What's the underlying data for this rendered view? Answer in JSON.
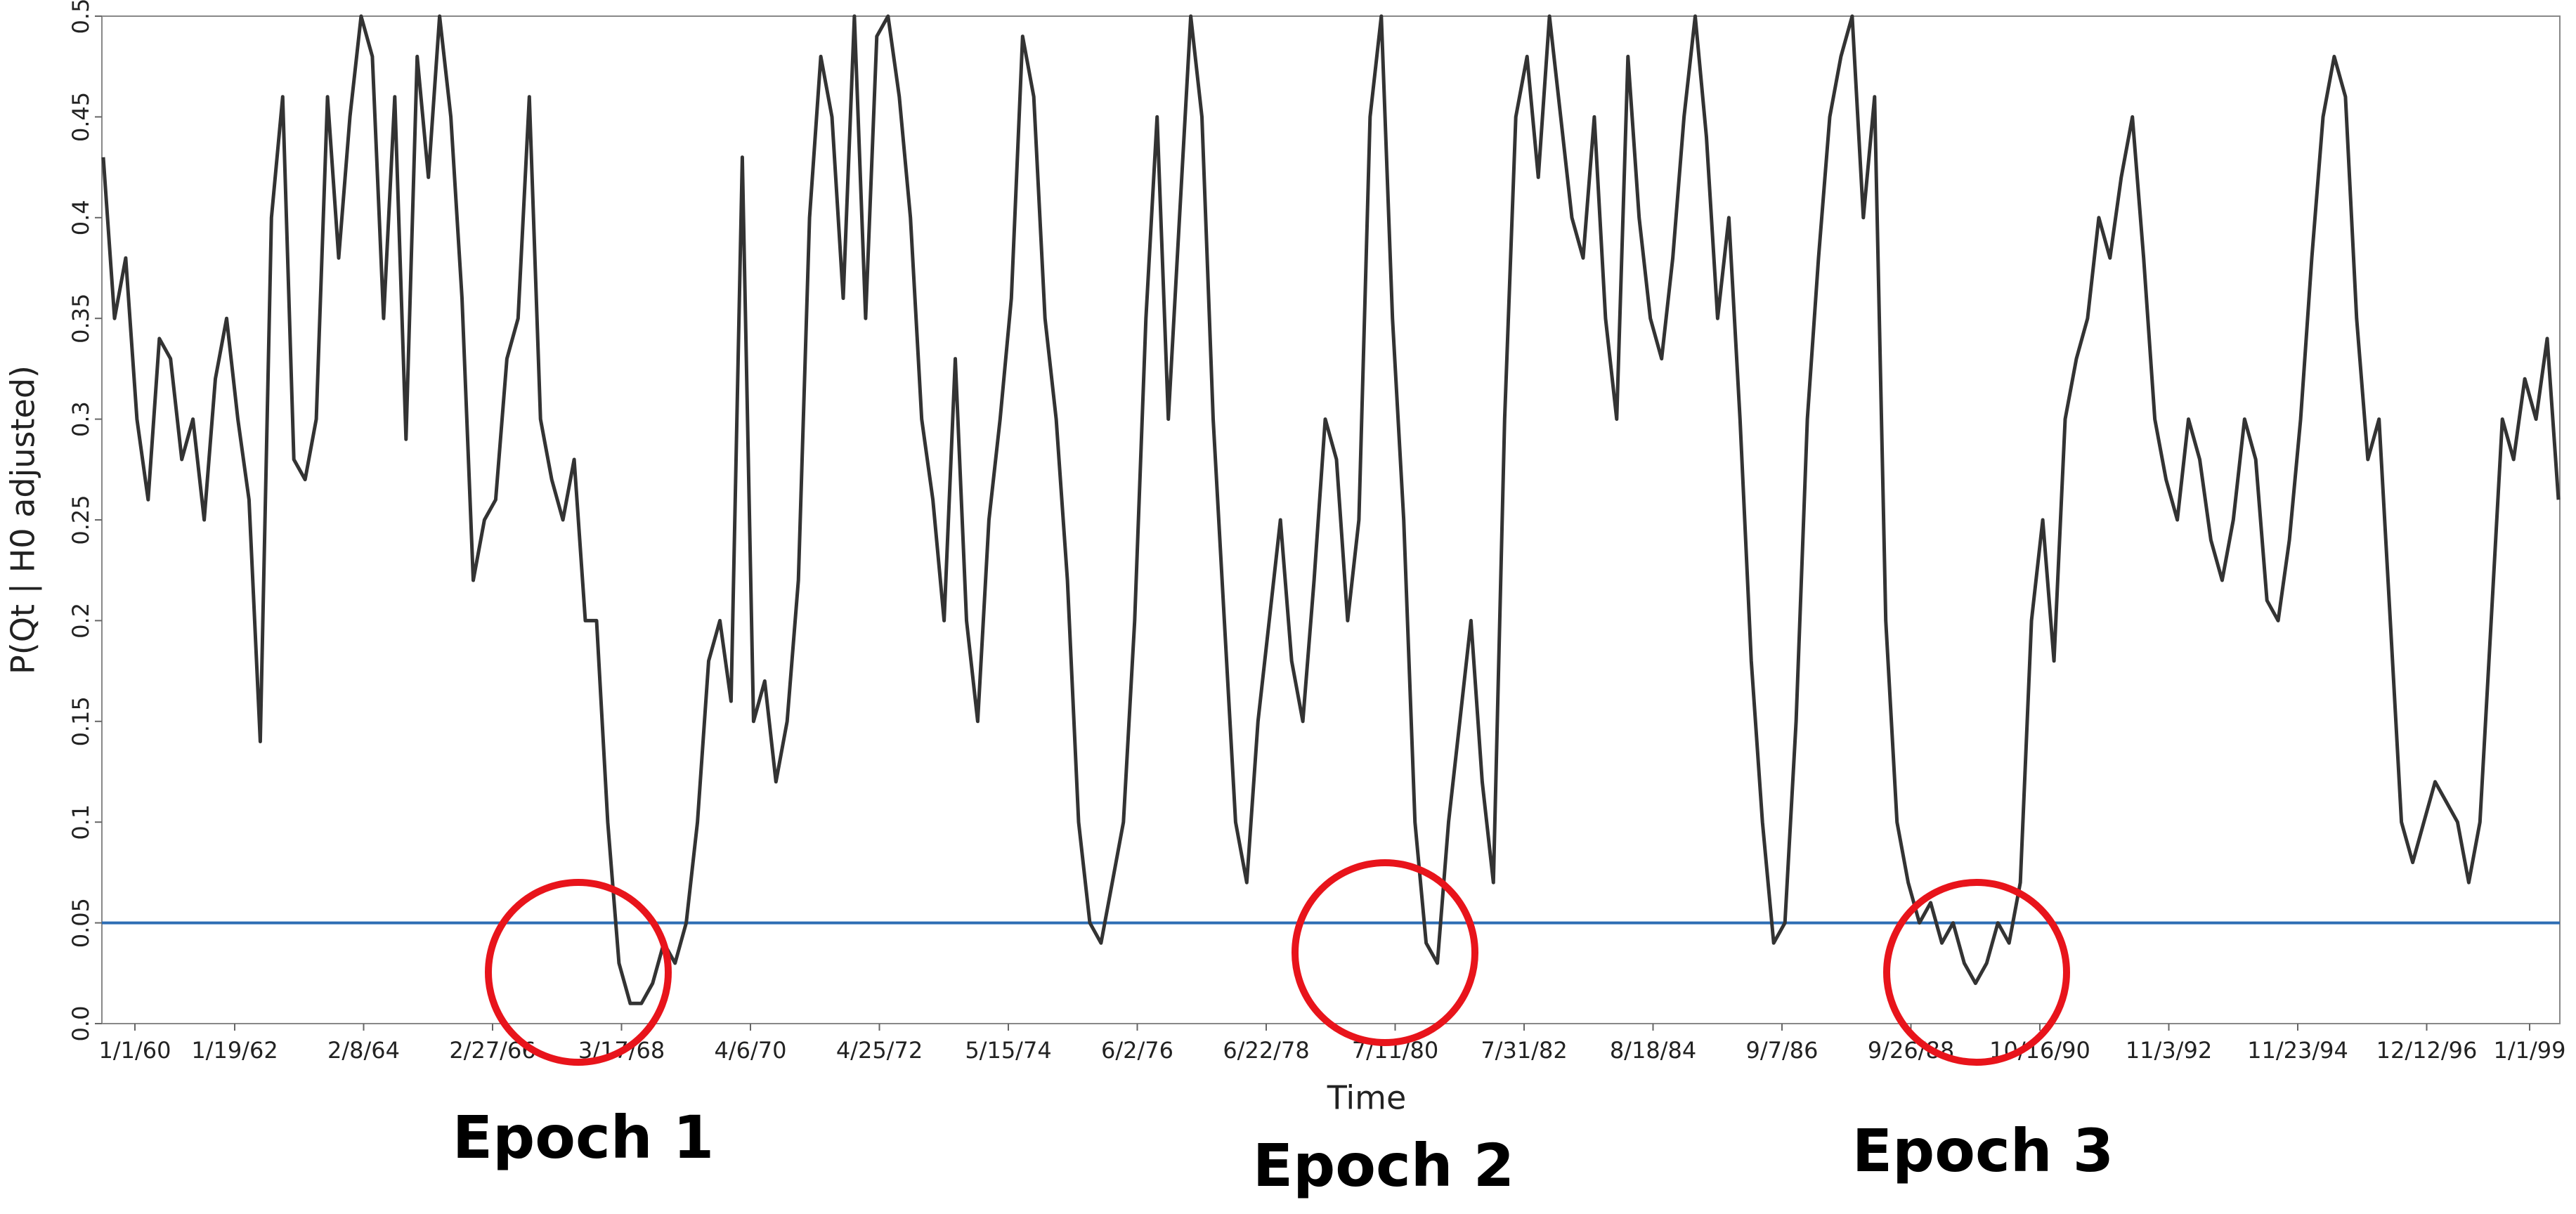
{
  "chart_data": {
    "type": "line",
    "y_label": "P(Qt | H0 adjusted)",
    "x_label": "Time",
    "xticks": [
      "1/1/60",
      "1/19/62",
      "2/8/64",
      "2/27/66",
      "3/17/68",
      "4/6/70",
      "4/25/72",
      "5/15/74",
      "6/2/76",
      "6/22/78",
      "7/11/80",
      "7/31/82",
      "8/18/84",
      "9/7/86",
      "9/26/88",
      "10/16/90",
      "11/3/92",
      "11/23/94",
      "12/12/96",
      "1/1/99"
    ],
    "ylim": [
      0,
      0.5
    ],
    "yticks": [
      {
        "value": 0,
        "label": "0.0"
      },
      0.05,
      0.1,
      0.15,
      0.2,
      0.25,
      0.3,
      0.35,
      0.4,
      0.45,
      0.5
    ],
    "threshold": 0.05,
    "threshold_color": "#2e6db4",
    "color": "#333333",
    "values": [
      0.43,
      0.35,
      0.38,
      0.3,
      0.26,
      0.34,
      0.33,
      0.28,
      0.3,
      0.25,
      0.32,
      0.35,
      0.3,
      0.26,
      0.14,
      0.4,
      0.46,
      0.28,
      0.27,
      0.3,
      0.46,
      0.38,
      0.45,
      0.5,
      0.48,
      0.35,
      0.46,
      0.29,
      0.48,
      0.42,
      0.5,
      0.45,
      0.36,
      0.22,
      0.25,
      0.26,
      0.33,
      0.35,
      0.46,
      0.3,
      0.27,
      0.25,
      0.28,
      0.2,
      0.2,
      0.1,
      0.03,
      0.01,
      0.01,
      0.02,
      0.04,
      0.03,
      0.05,
      0.1,
      0.18,
      0.2,
      0.16,
      0.43,
      0.15,
      0.17,
      0.12,
      0.15,
      0.22,
      0.4,
      0.48,
      0.45,
      0.36,
      0.5,
      0.35,
      0.49,
      0.5,
      0.46,
      0.4,
      0.3,
      0.26,
      0.2,
      0.33,
      0.2,
      0.15,
      0.25,
      0.3,
      0.36,
      0.49,
      0.46,
      0.35,
      0.3,
      0.22,
      0.1,
      0.05,
      0.04,
      0.07,
      0.1,
      0.2,
      0.35,
      0.45,
      0.3,
      0.4,
      0.5,
      0.45,
      0.3,
      0.2,
      0.1,
      0.07,
      0.15,
      0.2,
      0.25,
      0.18,
      0.15,
      0.22,
      0.3,
      0.28,
      0.2,
      0.25,
      0.45,
      0.5,
      0.35,
      0.25,
      0.1,
      0.04,
      0.03,
      0.1,
      0.15,
      0.2,
      0.12,
      0.07,
      0.3,
      0.45,
      0.48,
      0.42,
      0.5,
      0.45,
      0.4,
      0.38,
      0.45,
      0.35,
      0.3,
      0.48,
      0.4,
      0.35,
      0.33,
      0.38,
      0.45,
      0.5,
      0.44,
      0.35,
      0.4,
      0.3,
      0.18,
      0.1,
      0.04,
      0.05,
      0.15,
      0.3,
      0.38,
      0.45,
      0.48,
      0.5,
      0.4,
      0.46,
      0.2,
      0.1,
      0.07,
      0.05,
      0.06,
      0.04,
      0.05,
      0.03,
      0.02,
      0.03,
      0.05,
      0.04,
      0.07,
      0.2,
      0.25,
      0.18,
      0.3,
      0.33,
      0.35,
      0.4,
      0.38,
      0.42,
      0.45,
      0.38,
      0.3,
      0.27,
      0.25,
      0.3,
      0.28,
      0.24,
      0.22,
      0.25,
      0.3,
      0.28,
      0.21,
      0.2,
      0.24,
      0.3,
      0.38,
      0.45,
      0.48,
      0.46,
      0.35,
      0.28,
      0.3,
      0.2,
      0.1,
      0.08,
      0.1,
      0.12,
      0.11,
      0.1,
      0.07,
      0.1,
      0.2,
      0.3,
      0.28,
      0.32,
      0.3,
      0.34,
      0.26
    ],
    "annotations": [
      "Epoch 1",
      "Epoch 2",
      "Epoch 3"
    ],
    "annotation_color": "#e8141b"
  }
}
